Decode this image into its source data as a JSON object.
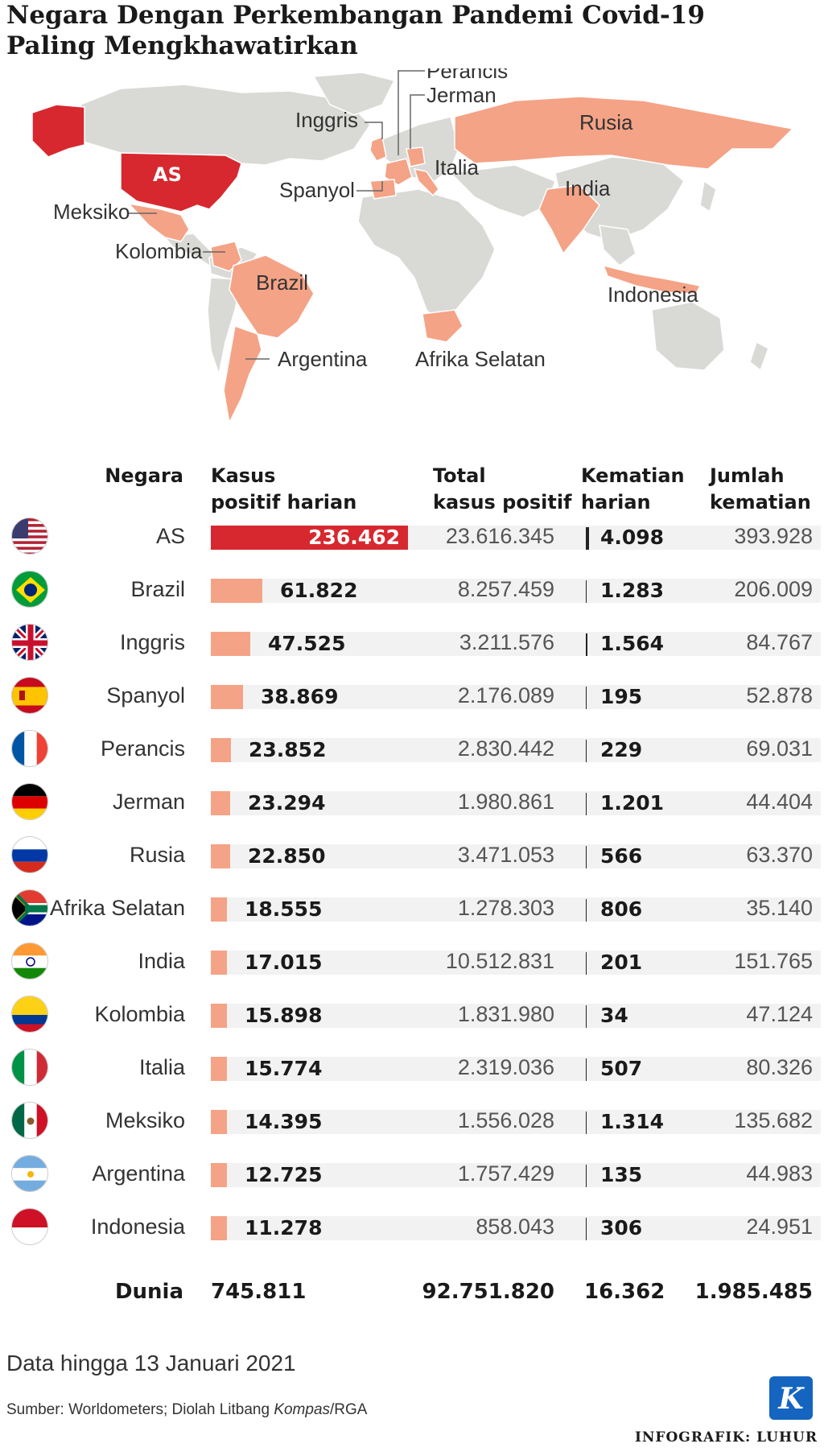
{
  "title": {
    "line1": "Negara Dengan Perkembangan Pandemi Covid-19",
    "line2": "Paling Mengkhawatirkan"
  },
  "map_labels": {
    "perancis": "Perancis",
    "jerman": "Jerman",
    "inggris": "Inggris",
    "rusia": "Rusia",
    "as": "AS",
    "italia": "Italia",
    "spanyol": "Spanyol",
    "india": "India",
    "meksiko": "Meksiko",
    "kolombia": "Kolombia",
    "brazil": "Brazil",
    "indonesia": "Indonesia",
    "argentina": "Argentina",
    "afrika_selatan": "Afrika Selatan"
  },
  "colors": {
    "highlight": "#d7282f",
    "secondary": "#f4a386",
    "land": "#d9d9d6",
    "row_band": "#f2f2f2"
  },
  "chart_data": {
    "type": "table",
    "columns": [
      "Negara",
      "Kasus positif harian",
      "Total kasus positif",
      "Kematian harian",
      "Jumlah kematian"
    ],
    "rows": [
      {
        "country": "AS",
        "flag": "flag-us-icon",
        "daily_cases": 236462,
        "daily_cases_label": "236.462",
        "total_cases": "23.616.345",
        "daily_deaths": 4098,
        "daily_deaths_label": "4.098",
        "total_deaths": "393.928"
      },
      {
        "country": "Brazil",
        "flag": "flag-brazil-icon",
        "daily_cases": 61822,
        "daily_cases_label": "61.822",
        "total_cases": "8.257.459",
        "daily_deaths": 1283,
        "daily_deaths_label": "1.283",
        "total_deaths": "206.009"
      },
      {
        "country": "Inggris",
        "flag": "flag-uk-icon",
        "daily_cases": 47525,
        "daily_cases_label": "47.525",
        "total_cases": "3.211.576",
        "daily_deaths": 1564,
        "daily_deaths_label": "1.564",
        "total_deaths": "84.767"
      },
      {
        "country": "Spanyol",
        "flag": "flag-spain-icon",
        "daily_cases": 38869,
        "daily_cases_label": "38.869",
        "total_cases": "2.176.089",
        "daily_deaths": 195,
        "daily_deaths_label": "195",
        "total_deaths": "52.878"
      },
      {
        "country": "Perancis",
        "flag": "flag-france-icon",
        "daily_cases": 23852,
        "daily_cases_label": "23.852",
        "total_cases": "2.830.442",
        "daily_deaths": 229,
        "daily_deaths_label": "229",
        "total_deaths": "69.031"
      },
      {
        "country": "Jerman",
        "flag": "flag-germany-icon",
        "daily_cases": 23294,
        "daily_cases_label": "23.294",
        "total_cases": "1.980.861",
        "daily_deaths": 1201,
        "daily_deaths_label": "1.201",
        "total_deaths": "44.404"
      },
      {
        "country": "Rusia",
        "flag": "flag-russia-icon",
        "daily_cases": 22850,
        "daily_cases_label": "22.850",
        "total_cases": "3.471.053",
        "daily_deaths": 566,
        "daily_deaths_label": "566",
        "total_deaths": "63.370"
      },
      {
        "country": "Afrika Selatan",
        "flag": "flag-south-africa-icon",
        "daily_cases": 18555,
        "daily_cases_label": "18.555",
        "total_cases": "1.278.303",
        "daily_deaths": 806,
        "daily_deaths_label": "806",
        "total_deaths": "35.140"
      },
      {
        "country": "India",
        "flag": "flag-india-icon",
        "daily_cases": 17015,
        "daily_cases_label": "17.015",
        "total_cases": "10.512.831",
        "daily_deaths": 201,
        "daily_deaths_label": "201",
        "total_deaths": "151.765"
      },
      {
        "country": "Kolombia",
        "flag": "flag-colombia-icon",
        "daily_cases": 15898,
        "daily_cases_label": "15.898",
        "total_cases": "1.831.980",
        "daily_deaths": 34,
        "daily_deaths_label": "34",
        "total_deaths": "47.124"
      },
      {
        "country": "Italia",
        "flag": "flag-italy-icon",
        "daily_cases": 15774,
        "daily_cases_label": "15.774",
        "total_cases": "2.319.036",
        "daily_deaths": 507,
        "daily_deaths_label": "507",
        "total_deaths": "80.326"
      },
      {
        "country": "Meksiko",
        "flag": "flag-mexico-icon",
        "daily_cases": 14395,
        "daily_cases_label": "14.395",
        "total_cases": "1.556.028",
        "daily_deaths": 1314,
        "daily_deaths_label": "1.314",
        "total_deaths": "135.682"
      },
      {
        "country": "Argentina",
        "flag": "flag-argentina-icon",
        "daily_cases": 12725,
        "daily_cases_label": "12.725",
        "total_cases": "1.757.429",
        "daily_deaths": 135,
        "daily_deaths_label": "135",
        "total_deaths": "44.983"
      },
      {
        "country": "Indonesia",
        "flag": "flag-indonesia-icon",
        "daily_cases": 11278,
        "daily_cases_label": "11.278",
        "total_cases": "858.043",
        "daily_deaths": 306,
        "daily_deaths_label": "306",
        "total_deaths": "24.951"
      }
    ],
    "world": {
      "label": "Dunia",
      "daily_cases": "745.811",
      "total_cases": "92.751.820",
      "daily_deaths": "16.362",
      "total_deaths": "1.985.485"
    }
  },
  "headers": {
    "country": "Negara",
    "daily_cases_1": "Kasus",
    "daily_cases_2": "positif harian",
    "total_cases_1": "Total",
    "total_cases_2": "kasus positif",
    "daily_deaths_1": "Kematian",
    "daily_deaths_2": "harian",
    "total_deaths_1": "Jumlah",
    "total_deaths_2": "kematian"
  },
  "footer": {
    "note": "Data hingga 13 Januari 2021",
    "source_prefix": "Sumber: Worldometers; Diolah Litbang ",
    "source_italic": "Kompas",
    "source_suffix": "/RGA",
    "credit": "INFOGRAFIK: LUHUR",
    "logo_letter": "K"
  }
}
